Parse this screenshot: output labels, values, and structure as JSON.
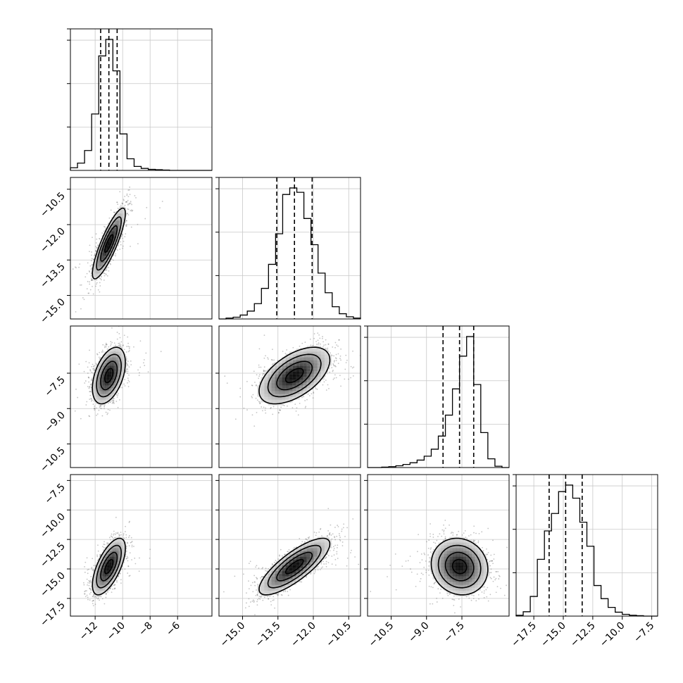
{
  "chart_data": {
    "type": "corner",
    "grid": true,
    "parameters": [
      {
        "index": 0,
        "range": [
          -13.8,
          -3.5
        ],
        "ticks": [
          -12,
          -10,
          -8,
          -6
        ],
        "tick_labels": [
          "−12",
          "−10",
          "−8",
          "−6"
        ],
        "mean": -11.0,
        "sd": 0.6,
        "quantiles": [
          -11.6,
          -11.0,
          -10.4
        ],
        "histogram": {
          "bin_edges": [
            -13.8,
            -13.285,
            -12.77,
            -12.255,
            -11.74,
            -11.225,
            -10.71,
            -10.195,
            -9.68,
            -9.165,
            -8.65,
            -8.135,
            -7.62,
            -7.105,
            -6.59,
            -6.075,
            -5.56,
            -5.045,
            -4.53,
            -4.015,
            -3.5
          ],
          "counts": [
            8,
            22,
            60,
            170,
            345,
            395,
            300,
            110,
            35,
            12,
            6,
            3,
            2,
            1,
            0,
            0,
            0,
            0,
            0,
            0
          ]
        }
      },
      {
        "index": 1,
        "range": [
          -16.0,
          -10.0
        ],
        "ticks": [
          -15.0,
          -13.5,
          -12.0,
          -10.5
        ],
        "tick_labels": [
          "−15.0",
          "−13.5",
          "−12.0",
          "−10.5"
        ],
        "mean": -12.8,
        "sd": 0.75,
        "quantiles": [
          -13.55,
          -12.8,
          -12.05
        ],
        "histogram": {
          "bin_edges": [
            -16.0,
            -15.7,
            -15.4,
            -15.1,
            -14.8,
            -14.5,
            -14.2,
            -13.9,
            -13.6,
            -13.3,
            -13.0,
            -12.7,
            -12.4,
            -12.1,
            -11.8,
            -11.5,
            -11.2,
            -10.9,
            -10.6,
            -10.3,
            -10.0
          ],
          "counts": [
            0,
            2,
            4,
            9,
            18,
            35,
            70,
            125,
            195,
            285,
            300,
            290,
            230,
            170,
            105,
            60,
            28,
            12,
            5,
            2
          ]
        }
      },
      {
        "index": 2,
        "range": [
          -11.5,
          -5.5
        ],
        "ticks": [
          -10.5,
          -9.0,
          -7.5
        ],
        "tick_labels": [
          "−10.5",
          "−9.0",
          "−7.5"
        ],
        "mean": -7.6,
        "sd": 0.6,
        "quantiles": [
          -8.3,
          -7.6,
          -7.0
        ],
        "histogram": {
          "bin_edges": [
            -11.5,
            -11.2,
            -10.9,
            -10.6,
            -10.3,
            -10.0,
            -9.7,
            -9.4,
            -9.1,
            -8.8,
            -8.5,
            -8.2,
            -7.9,
            -7.6,
            -7.3,
            -7.0,
            -6.7,
            -6.4,
            -6.1,
            -5.8,
            -5.5
          ],
          "counts": [
            0,
            0,
            1,
            2,
            4,
            7,
            11,
            17,
            26,
            42,
            72,
            120,
            180,
            255,
            300,
            190,
            80,
            20,
            3,
            0
          ]
        }
      },
      {
        "index": 3,
        "range": [
          -19.0,
          -7.0
        ],
        "ticks": [
          -17.5,
          -15.0,
          -12.5,
          -10.0,
          -7.5
        ],
        "tick_labels": [
          "−17.5",
          "−15.0",
          "−12.5",
          "−10.0",
          "−7.5"
        ],
        "mean": -14.8,
        "sd": 1.2,
        "quantiles": [
          -16.2,
          -14.8,
          -13.4
        ],
        "histogram": {
          "bin_edges": [
            -19.0,
            -18.4,
            -17.8,
            -17.2,
            -16.6,
            -16.0,
            -15.4,
            -14.8,
            -14.2,
            -13.6,
            -13.0,
            -12.4,
            -11.8,
            -11.2,
            -10.6,
            -10.0,
            -9.4,
            -8.8,
            -8.2,
            -7.6,
            -7.0
          ],
          "counts": [
            2,
            10,
            45,
            130,
            195,
            235,
            285,
            300,
            270,
            215,
            160,
            70,
            40,
            20,
            9,
            4,
            2,
            1,
            0,
            0
          ]
        }
      }
    ],
    "correlations": [
      {
        "x": 0,
        "y": 1,
        "r": 0.85
      },
      {
        "x": 0,
        "y": 2,
        "r": 0.45
      },
      {
        "x": 1,
        "y": 2,
        "r": 0.55
      },
      {
        "x": 0,
        "y": 3,
        "r": 0.65
      },
      {
        "x": 1,
        "y": 3,
        "r": 0.8
      },
      {
        "x": 2,
        "y": 3,
        "r": -0.1
      }
    ],
    "contour_levels_sigma": [
      0.5,
      1.0,
      1.5,
      2.0
    ]
  }
}
